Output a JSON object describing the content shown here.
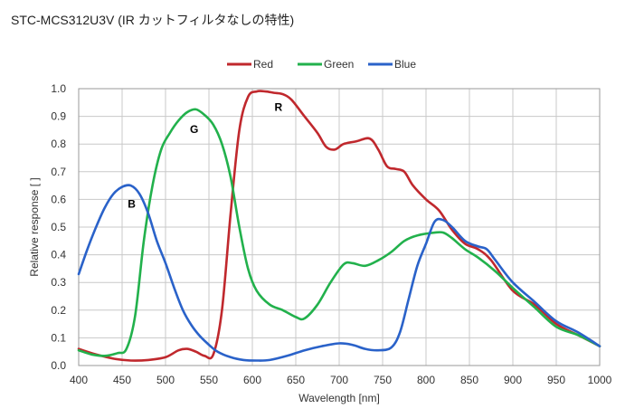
{
  "title": "STC-MCS312U3V (IR カットフィルタなしの特性)",
  "chart_data": {
    "type": "line",
    "title": "",
    "xlabel": "Wavelength [nm]",
    "ylabel": "Relative response [ ]",
    "xlim": [
      400,
      1000
    ],
    "ylim": [
      0,
      1.0
    ],
    "x_ticks": [
      "400",
      "450",
      "500",
      "550",
      "600",
      "650",
      "700",
      "750",
      "800",
      "850",
      "900",
      "950",
      "1000"
    ],
    "y_ticks": [
      "0.0",
      "0.1",
      "0.2",
      "0.3",
      "0.4",
      "0.5",
      "0.6",
      "0.7",
      "0.8",
      "0.9",
      "1.0"
    ],
    "grid": true,
    "legend_position": "top",
    "series": [
      {
        "name": "Red",
        "color": "#c0282d",
        "points": [
          [
            400,
            0.06
          ],
          [
            420,
            0.04
          ],
          [
            440,
            0.025
          ],
          [
            460,
            0.018
          ],
          [
            480,
            0.02
          ],
          [
            500,
            0.03
          ],
          [
            515,
            0.055
          ],
          [
            525,
            0.06
          ],
          [
            535,
            0.05
          ],
          [
            545,
            0.035
          ],
          [
            555,
            0.04
          ],
          [
            565,
            0.2
          ],
          [
            575,
            0.55
          ],
          [
            585,
            0.85
          ],
          [
            595,
            0.97
          ],
          [
            605,
            0.99
          ],
          [
            615,
            0.99
          ],
          [
            625,
            0.985
          ],
          [
            635,
            0.98
          ],
          [
            645,
            0.96
          ],
          [
            660,
            0.9
          ],
          [
            675,
            0.84
          ],
          [
            685,
            0.79
          ],
          [
            695,
            0.78
          ],
          [
            705,
            0.8
          ],
          [
            720,
            0.81
          ],
          [
            735,
            0.82
          ],
          [
            745,
            0.78
          ],
          [
            755,
            0.72
          ],
          [
            765,
            0.71
          ],
          [
            775,
            0.7
          ],
          [
            785,
            0.65
          ],
          [
            800,
            0.6
          ],
          [
            815,
            0.56
          ],
          [
            830,
            0.49
          ],
          [
            845,
            0.44
          ],
          [
            860,
            0.42
          ],
          [
            875,
            0.38
          ],
          [
            900,
            0.27
          ],
          [
            925,
            0.22
          ],
          [
            950,
            0.15
          ],
          [
            975,
            0.11
          ],
          [
            1000,
            0.07
          ]
        ]
      },
      {
        "name": "Green",
        "color": "#22b14c",
        "points": [
          [
            400,
            0.055
          ],
          [
            415,
            0.04
          ],
          [
            430,
            0.035
          ],
          [
            445,
            0.045
          ],
          [
            455,
            0.06
          ],
          [
            465,
            0.18
          ],
          [
            475,
            0.45
          ],
          [
            485,
            0.65
          ],
          [
            495,
            0.78
          ],
          [
            505,
            0.84
          ],
          [
            515,
            0.885
          ],
          [
            525,
            0.915
          ],
          [
            535,
            0.925
          ],
          [
            545,
            0.905
          ],
          [
            555,
            0.87
          ],
          [
            565,
            0.8
          ],
          [
            575,
            0.68
          ],
          [
            585,
            0.5
          ],
          [
            595,
            0.35
          ],
          [
            605,
            0.27
          ],
          [
            620,
            0.22
          ],
          [
            635,
            0.2
          ],
          [
            650,
            0.175
          ],
          [
            660,
            0.17
          ],
          [
            675,
            0.22
          ],
          [
            690,
            0.3
          ],
          [
            705,
            0.365
          ],
          [
            715,
            0.37
          ],
          [
            730,
            0.36
          ],
          [
            745,
            0.38
          ],
          [
            760,
            0.41
          ],
          [
            775,
            0.45
          ],
          [
            790,
            0.47
          ],
          [
            810,
            0.48
          ],
          [
            820,
            0.48
          ],
          [
            830,
            0.46
          ],
          [
            845,
            0.42
          ],
          [
            860,
            0.39
          ],
          [
            880,
            0.34
          ],
          [
            900,
            0.28
          ],
          [
            925,
            0.21
          ],
          [
            950,
            0.14
          ],
          [
            975,
            0.11
          ],
          [
            1000,
            0.07
          ]
        ]
      },
      {
        "name": "Blue",
        "color": "#2a62c9",
        "points": [
          [
            400,
            0.33
          ],
          [
            410,
            0.42
          ],
          [
            420,
            0.5
          ],
          [
            430,
            0.57
          ],
          [
            440,
            0.62
          ],
          [
            450,
            0.645
          ],
          [
            460,
            0.65
          ],
          [
            470,
            0.62
          ],
          [
            480,
            0.55
          ],
          [
            490,
            0.45
          ],
          [
            500,
            0.37
          ],
          [
            510,
            0.28
          ],
          [
            520,
            0.2
          ],
          [
            530,
            0.145
          ],
          [
            540,
            0.105
          ],
          [
            550,
            0.075
          ],
          [
            560,
            0.05
          ],
          [
            575,
            0.03
          ],
          [
            590,
            0.02
          ],
          [
            605,
            0.018
          ],
          [
            620,
            0.02
          ],
          [
            640,
            0.035
          ],
          [
            660,
            0.055
          ],
          [
            680,
            0.07
          ],
          [
            700,
            0.08
          ],
          [
            715,
            0.075
          ],
          [
            730,
            0.06
          ],
          [
            745,
            0.055
          ],
          [
            760,
            0.065
          ],
          [
            770,
            0.12
          ],
          [
            780,
            0.24
          ],
          [
            790,
            0.36
          ],
          [
            800,
            0.44
          ],
          [
            810,
            0.52
          ],
          [
            820,
            0.525
          ],
          [
            830,
            0.5
          ],
          [
            845,
            0.45
          ],
          [
            860,
            0.43
          ],
          [
            870,
            0.42
          ],
          [
            880,
            0.38
          ],
          [
            900,
            0.3
          ],
          [
            925,
            0.23
          ],
          [
            950,
            0.16
          ],
          [
            975,
            0.12
          ],
          [
            1000,
            0.07
          ]
        ]
      }
    ],
    "annotations": [
      {
        "text": "R",
        "x": 630,
        "y": 0.92
      },
      {
        "text": "G",
        "x": 533,
        "y": 0.84
      },
      {
        "text": "B",
        "x": 461,
        "y": 0.57
      }
    ]
  }
}
